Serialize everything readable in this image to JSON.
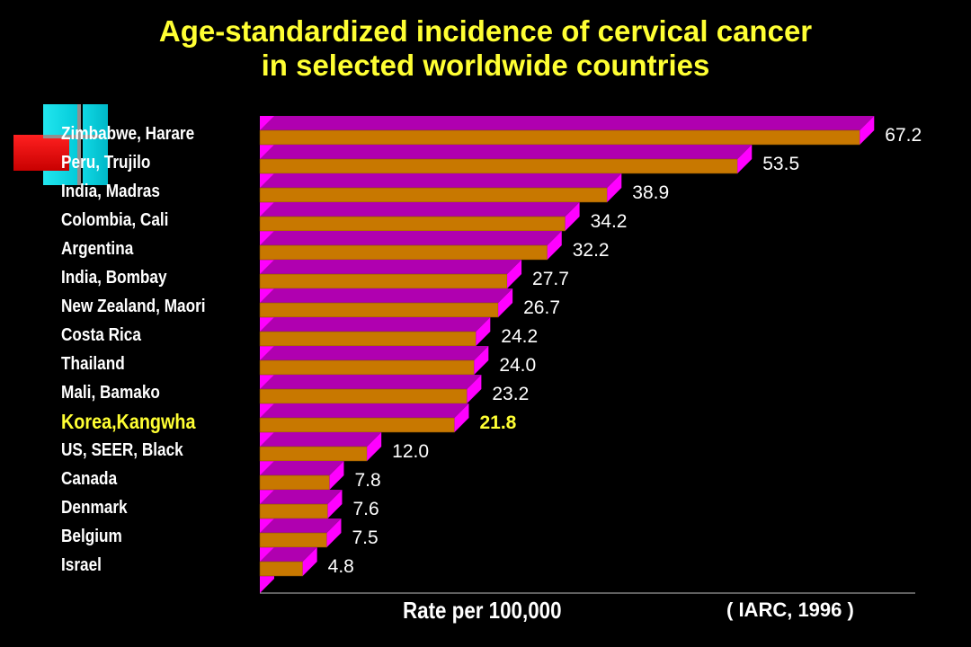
{
  "chart_data": {
    "type": "bar",
    "orientation": "horizontal",
    "title": "Age-standardized incidence of cervical cancer in selected worldwide countries",
    "title_lines": [
      "Age-standardized incidence of cervical cancer",
      "in selected worldwide countries"
    ],
    "xlabel": "Rate per 100,000",
    "ylabel": "",
    "source": "( IARC, 1996 )",
    "categories": [
      "Zimbabwe, Harare",
      "Peru, Trujilo",
      "India, Madras",
      "Colombia, Cali",
      "Argentina",
      "India, Bombay",
      "New Zealand, Maori",
      "Costa Rica",
      "Thailand",
      "Mali, Bamako",
      "Korea,Kangwha",
      "US, SEER, Black",
      "Canada",
      "Denmark",
      "Belgium",
      "Israel"
    ],
    "values": [
      67.2,
      53.5,
      38.9,
      34.2,
      32.2,
      27.7,
      26.7,
      24.2,
      24.0,
      23.2,
      21.8,
      12.0,
      7.8,
      7.6,
      7.5,
      4.8
    ],
    "value_labels": [
      "67.2",
      "53.5",
      "38.9",
      "34.2",
      "32.2",
      "27.7",
      "26.7",
      "24.2",
      "24.0",
      "23.2",
      "21.8",
      "12.0",
      "7.8",
      "7.6",
      "7.5",
      "4.8"
    ],
    "highlight_category": "Korea,Kangwha",
    "xlim": [
      0,
      70
    ],
    "grid": false,
    "legend": "none",
    "colors": {
      "bar_face": "#c87800",
      "bar_top": "#b000b0",
      "bar_side": "#ff00ff",
      "highlight_text": "#ffff33",
      "text": "#ffffff",
      "title": "#ffff33",
      "background": "#000000"
    }
  }
}
